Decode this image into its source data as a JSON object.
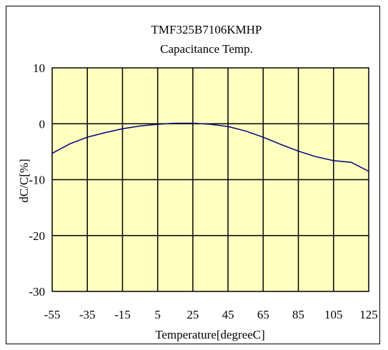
{
  "chart_data": {
    "type": "line",
    "title": "TMF325B7106KMHP",
    "subtitle": "Capacitance Temp.",
    "xlabel": "Temperature[degreeC]",
    "ylabel": "dC/C[%]",
    "xlim": [
      -55,
      125
    ],
    "ylim": [
      -30,
      10
    ],
    "x_ticks": [
      "-55",
      "-35",
      "-15",
      "5",
      "25",
      "45",
      "65",
      "85",
      "105",
      "125"
    ],
    "y_ticks": [
      "10",
      "0",
      "-10",
      "-20",
      "-30"
    ],
    "grid": true,
    "series": [
      {
        "x": [
          -55,
          -45,
          -35,
          -25,
          -15,
          -5,
          5,
          15,
          25,
          35,
          45,
          55,
          65,
          75,
          85,
          95,
          105,
          115,
          125
        ],
        "y": [
          -5.3,
          -3.6,
          -2.4,
          -1.6,
          -0.9,
          -0.4,
          -0.1,
          0.1,
          0.1,
          -0.1,
          -0.5,
          -1.3,
          -2.4,
          -3.7,
          -4.9,
          -5.9,
          -6.6,
          -6.9,
          -8.5
        ]
      }
    ]
  },
  "colors": {
    "plot_background": "#ffffc0",
    "line": "#000080",
    "grid": "#000000"
  }
}
